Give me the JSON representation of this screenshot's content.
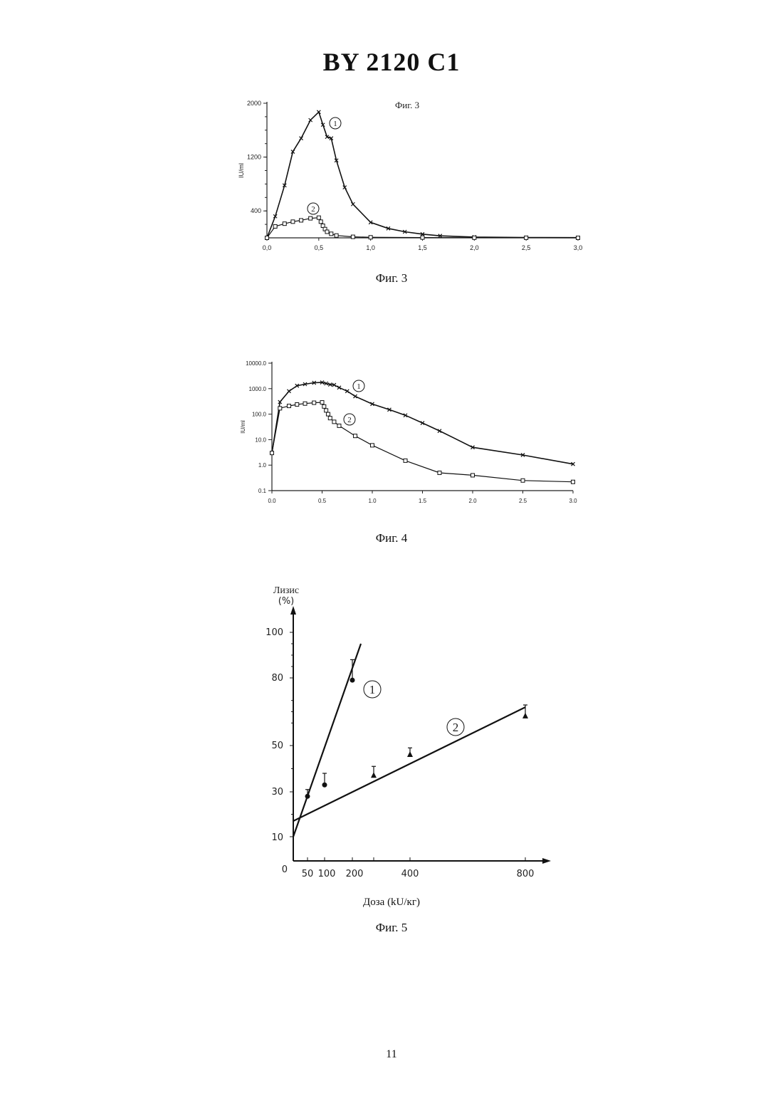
{
  "header": {
    "title": "BY  2120  C1"
  },
  "figures": [
    {
      "caption": "Фиг. 3",
      "inner_title": "Фиг. 3"
    },
    {
      "caption": "Фиг. 4"
    },
    {
      "caption": "Фиг. 5"
    }
  ],
  "page_number": "11",
  "chart_data": [
    {
      "id": "fig3",
      "type": "line",
      "ylabel": "IU/ml",
      "xlim": [
        0,
        3
      ],
      "ylim": [
        0,
        2000
      ],
      "x_ticks": [
        0,
        0.5,
        1.0,
        1.5,
        2.0,
        2.5,
        3.0
      ],
      "x_tick_labels": [
        "0,0",
        "0,5",
        "1,0",
        "1,5",
        "2,0",
        "2,5",
        "3,0"
      ],
      "y_ticks": [
        400,
        1200,
        2000
      ],
      "y_tick_labels": [
        "400",
        "1200",
        "2000"
      ],
      "series": [
        {
          "name": "1",
          "marker": "star",
          "points": [
            [
              0,
              0
            ],
            [
              0.08,
              320
            ],
            [
              0.17,
              780
            ],
            [
              0.25,
              1280
            ],
            [
              0.33,
              1480
            ],
            [
              0.42,
              1750
            ],
            [
              0.5,
              1870
            ],
            [
              0.54,
              1680
            ],
            [
              0.58,
              1500
            ],
            [
              0.62,
              1480
            ],
            [
              0.67,
              1150
            ],
            [
              0.75,
              750
            ],
            [
              0.83,
              500
            ],
            [
              1.0,
              230
            ],
            [
              1.17,
              140
            ],
            [
              1.33,
              90
            ],
            [
              1.5,
              55
            ],
            [
              1.67,
              30
            ],
            [
              2.0,
              12
            ],
            [
              2.5,
              5
            ],
            [
              3.0,
              3
            ]
          ]
        },
        {
          "name": "2",
          "marker": "square",
          "points": [
            [
              0,
              0
            ],
            [
              0.08,
              170
            ],
            [
              0.17,
              210
            ],
            [
              0.25,
              240
            ],
            [
              0.33,
              260
            ],
            [
              0.42,
              290
            ],
            [
              0.5,
              300
            ],
            [
              0.52,
              240
            ],
            [
              0.54,
              180
            ],
            [
              0.56,
              130
            ],
            [
              0.58,
              90
            ],
            [
              0.62,
              60
            ],
            [
              0.67,
              35
            ],
            [
              0.83,
              15
            ],
            [
              1.0,
              8
            ],
            [
              1.5,
              4
            ],
            [
              2.0,
              2
            ],
            [
              2.5,
              1
            ],
            [
              3.0,
              0
            ]
          ]
        }
      ]
    },
    {
      "id": "fig4",
      "type": "line",
      "ylabel": "IU/ml",
      "y_scale": "log",
      "xlim": [
        0,
        3
      ],
      "ylim": [
        0.1,
        10000
      ],
      "x_ticks": [
        0,
        0.5,
        1.0,
        1.5,
        2.0,
        2.5,
        3.0
      ],
      "x_tick_labels": [
        "0.0",
        "0.5",
        "1.0",
        "1.5",
        "2.0",
        "2.5",
        "3.0"
      ],
      "y_ticks": [
        0.1,
        1,
        10,
        100,
        1000,
        10000
      ],
      "y_tick_labels": [
        "0.1",
        "1.0",
        "10.0",
        "100.0",
        "1000.0",
        "10000.0"
      ],
      "series": [
        {
          "name": "1",
          "marker": "star",
          "points": [
            [
              0,
              3
            ],
            [
              0.08,
              300
            ],
            [
              0.17,
              800
            ],
            [
              0.25,
              1300
            ],
            [
              0.33,
              1500
            ],
            [
              0.42,
              1700
            ],
            [
              0.5,
              1750
            ],
            [
              0.54,
              1600
            ],
            [
              0.58,
              1450
            ],
            [
              0.62,
              1400
            ],
            [
              0.67,
              1100
            ],
            [
              0.75,
              800
            ],
            [
              0.83,
              500
            ],
            [
              1.0,
              250
            ],
            [
              1.17,
              150
            ],
            [
              1.33,
              90
            ],
            [
              1.5,
              45
            ],
            [
              1.67,
              22
            ],
            [
              2.0,
              5
            ],
            [
              2.5,
              2.5
            ],
            [
              3.0,
              1.1
            ]
          ]
        },
        {
          "name": "2",
          "marker": "square",
          "points": [
            [
              0,
              3
            ],
            [
              0.08,
              170
            ],
            [
              0.17,
              210
            ],
            [
              0.25,
              240
            ],
            [
              0.33,
              260
            ],
            [
              0.42,
              280
            ],
            [
              0.5,
              290
            ],
            [
              0.52,
              200
            ],
            [
              0.54,
              140
            ],
            [
              0.56,
              100
            ],
            [
              0.58,
              70
            ],
            [
              0.62,
              50
            ],
            [
              0.67,
              35
            ],
            [
              0.83,
              14
            ],
            [
              1.0,
              6
            ],
            [
              1.33,
              1.5
            ],
            [
              1.67,
              0.5
            ],
            [
              2.0,
              0.4
            ],
            [
              2.5,
              0.25
            ],
            [
              3.0,
              0.22
            ]
          ]
        }
      ]
    },
    {
      "id": "fig5",
      "type": "scatter",
      "xlabel": "Доза (kU/кг)",
      "ylabel_lines": [
        "Лизис",
        "(%)"
      ],
      "x_tick_labels": [
        "50",
        "100",
        "200",
        "400",
        "800"
      ],
      "y_tick_labels": [
        "0",
        "10",
        "30",
        "50",
        "80",
        "100"
      ],
      "series": [
        {
          "name": "1",
          "marker": "circle",
          "points": [
            {
              "x": 50,
              "y": 28,
              "err": 3
            },
            {
              "x": 100,
              "y": 33,
              "err": 5
            },
            {
              "x": 200,
              "y": 79,
              "err": 9
            }
          ],
          "fit_line": [
            [
              0,
              10
            ],
            [
              220,
              95
            ]
          ]
        },
        {
          "name": "2",
          "marker": "triangle",
          "points": [
            {
              "x": 250,
              "y": 37,
              "err": 4
            },
            {
              "x": 400,
              "y": 46,
              "err": 3
            },
            {
              "x": 800,
              "y": 63,
              "err": 5
            }
          ],
          "fit_line": [
            [
              0,
              17
            ],
            [
              800,
              67
            ]
          ]
        }
      ]
    }
  ]
}
